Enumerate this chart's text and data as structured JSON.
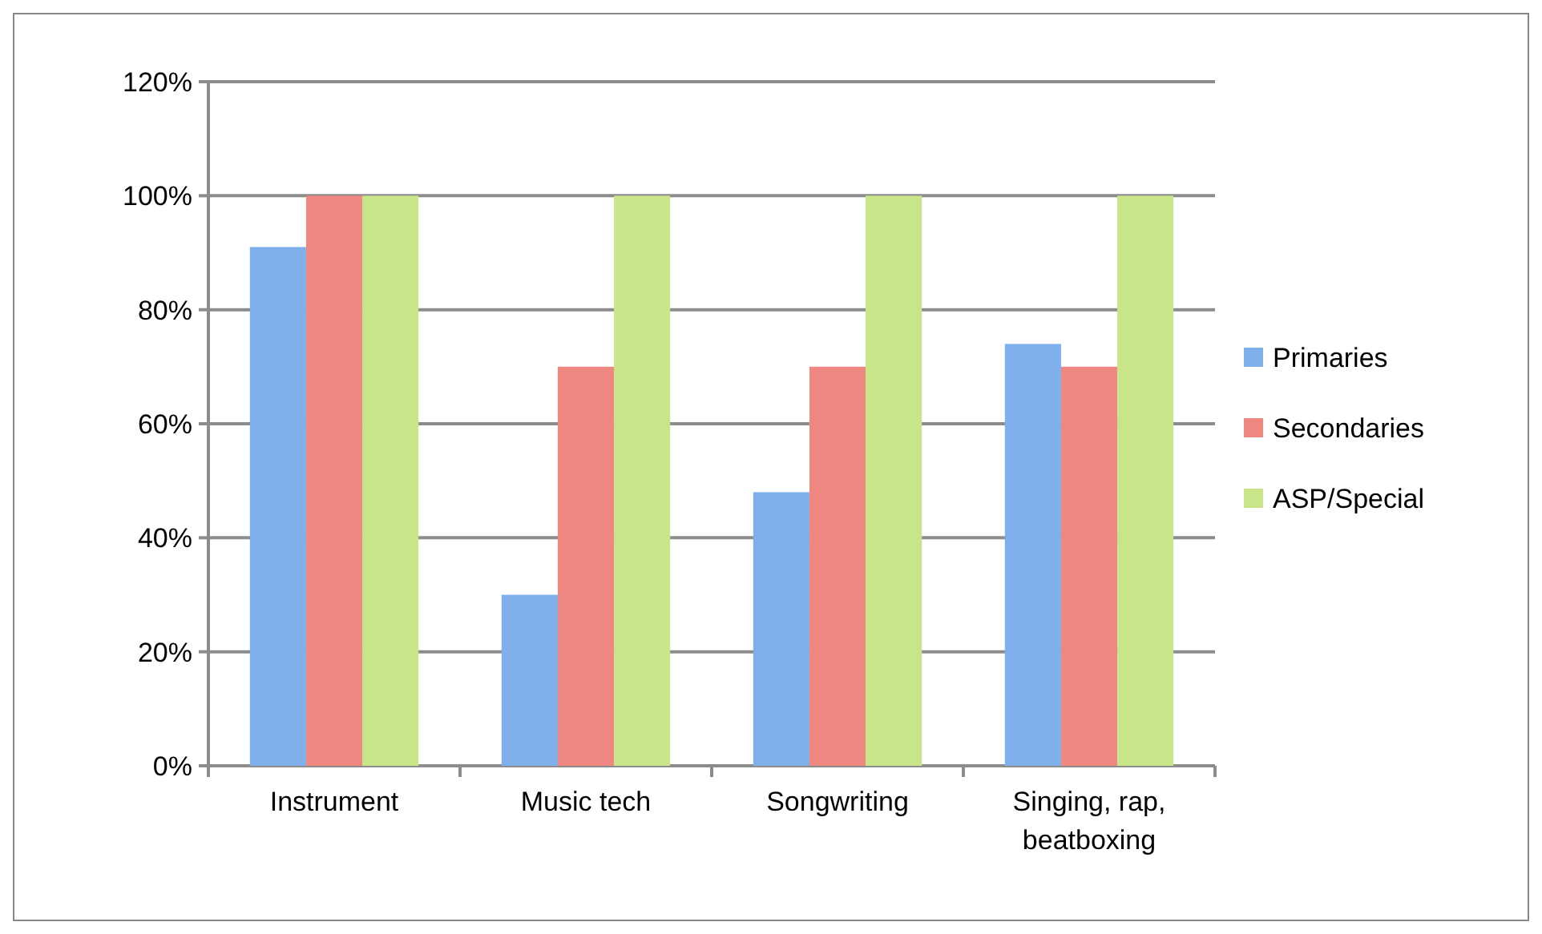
{
  "chart_data": {
    "type": "bar",
    "categories": [
      "Instrument",
      "Music tech",
      "Songwriting",
      "Singing, rap, beatboxing"
    ],
    "series": [
      {
        "name": "Primaries",
        "color": "#7fb0ec",
        "values": [
          91,
          30,
          48,
          74
        ]
      },
      {
        "name": "Secondaries",
        "color": "#ef8880",
        "values": [
          100,
          70,
          70,
          70
        ]
      },
      {
        "name": "ASP/Special",
        "color": "#c8e58a",
        "values": [
          100,
          100,
          100,
          100
        ]
      }
    ],
    "ylim": [
      0,
      120
    ],
    "yticks": [
      {
        "value": 0,
        "label": "0%"
      },
      {
        "value": 20,
        "label": "20%"
      },
      {
        "value": 40,
        "label": "40%"
      },
      {
        "value": 60,
        "label": "60%"
      },
      {
        "value": 80,
        "label": "80%"
      },
      {
        "value": 100,
        "label": "100%"
      },
      {
        "value": 120,
        "label": "120%"
      }
    ],
    "grid": "y",
    "legend": "right"
  }
}
